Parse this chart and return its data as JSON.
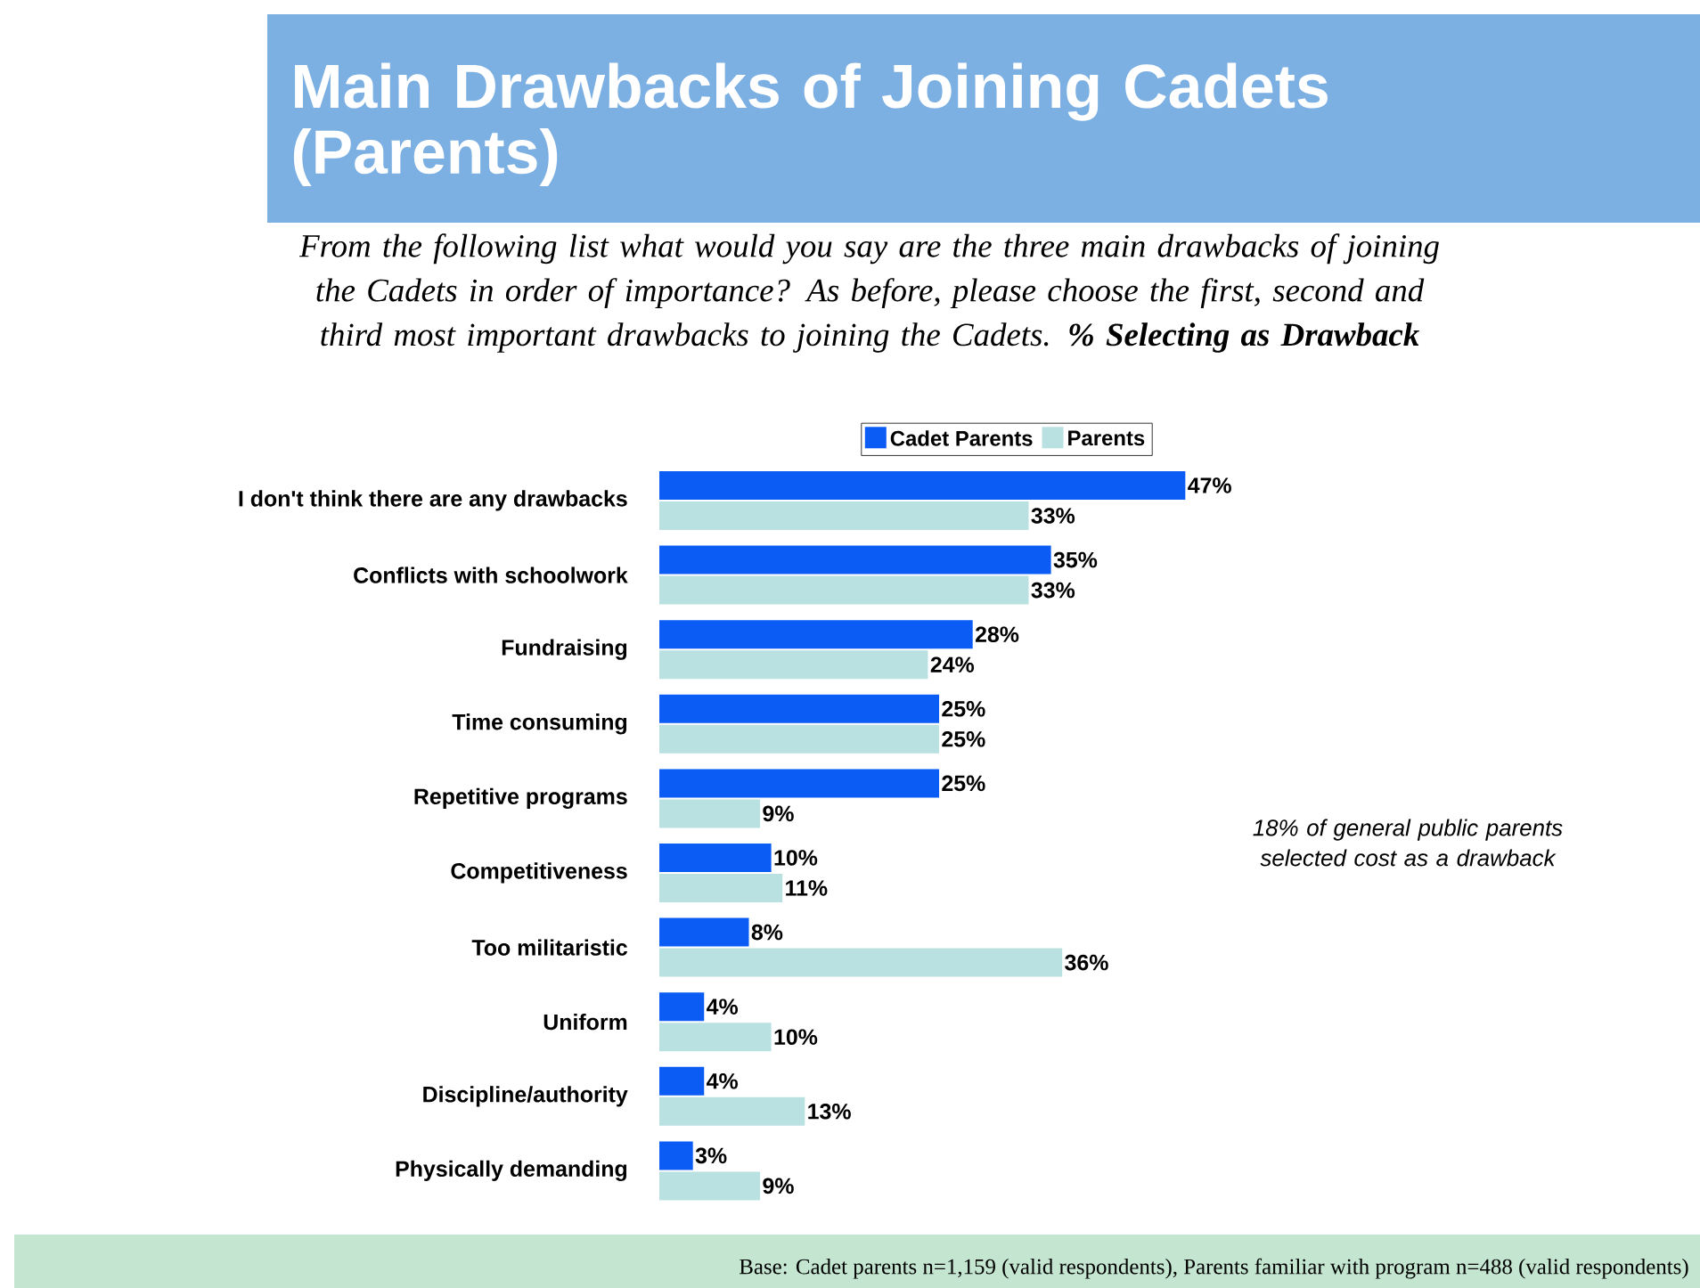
{
  "chart_data": {
    "type": "bar",
    "orientation": "horizontal",
    "title": "Main Drawbacks of Joining Cadets (Parents)",
    "subtitle": "From the following list what would you say are the three main drawbacks of joining the Cadets in order of importance? As before, please choose the first, second and third most important drawbacks to joining the Cadets. **% Selecting as Drawback**",
    "categories": [
      "I don't think there are any drawbacks",
      "Conflicts with schoolwork",
      "Fundraising",
      "Time consuming",
      "Repetitive programs",
      "Competitiveness",
      "Too militaristic",
      "Uniform",
      "Discipline/authority",
      "Physically demanding"
    ],
    "series": [
      {
        "name": "Cadet Parents",
        "color": "#0a5cf5",
        "values": [
          47,
          35,
          28,
          25,
          25,
          10,
          8,
          4,
          4,
          3
        ],
        "value_labels": [
          "47%",
          "35%",
          "28%",
          "25%",
          "25%",
          "10%",
          "8%",
          "4%",
          "4%",
          "3%"
        ]
      },
      {
        "name": "Parents",
        "color": "#b9e1e2",
        "values": [
          33,
          33,
          24,
          25,
          9,
          11,
          36,
          10,
          13,
          9
        ],
        "value_labels": [
          "33%",
          "33%",
          "24%",
          "25%",
          "9%",
          "11%",
          "36%",
          "10%",
          "13%",
          "9%"
        ]
      }
    ],
    "legend": "top",
    "annotations": [
      "18% of general public parents selected cost as a drawback",
      "Base: Cadet parents n=1,159 (valid respondents), Parents familiar with program n=488 (valid respondents)"
    ]
  }
}
